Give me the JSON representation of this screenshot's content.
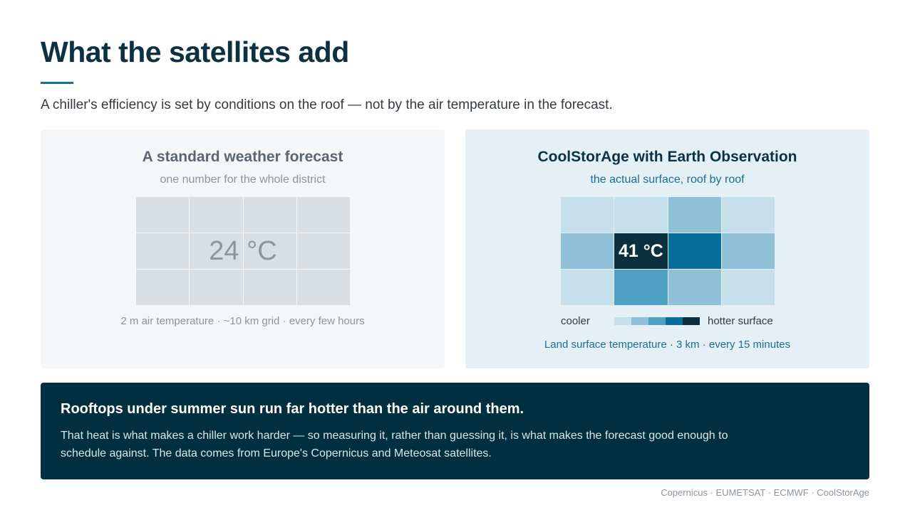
{
  "header": {
    "title": "What the satellites add",
    "subtitle": "A chiller's efficiency is set by conditions on the roof — not by the air temperature in the forecast."
  },
  "panels": [
    {
      "title": "A standard weather forecast",
      "subtitle": "one number for the whole district",
      "cell_label": "24 °C",
      "caption": "2 m air temperature · ~10 km grid · every few hours"
    },
    {
      "title": "CoolStorAge with Earth Observation",
      "subtitle": "the actual surface, roof by roof",
      "cell_label": "41 °C",
      "legend_low": "cooler",
      "legend_high": "hotter surface",
      "caption": "Land surface temperature · 3 km · every 15 minutes"
    }
  ],
  "callout": {
    "title": "Rooftops under summer sun run far hotter than the air around them.",
    "body": "That heat is what makes a chiller work harder — so measuring it, rather than guessing it, is what makes the forecast good enough to schedule against. The data comes from Europe's Copernicus and Meteosat satellites."
  },
  "footer": {
    "source": "Copernicus · EUMETSAT · ECMWF · CoolStorAge"
  }
}
